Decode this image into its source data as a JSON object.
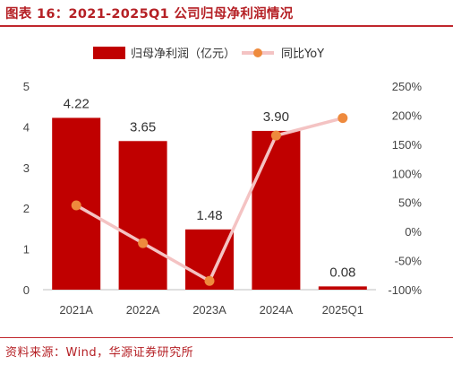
{
  "title": "图表 16：2021-2025Q1 公司归母净利润情况",
  "source": "资料来源：Wind，华源证券研究所",
  "colors": {
    "accent": "#c0272d",
    "bar": "#c00000",
    "line": "#f4c3c3",
    "marker": "#ee8a3d"
  },
  "chart_data": {
    "type": "bar",
    "categories": [
      "2021A",
      "2022A",
      "2023A",
      "2024A",
      "2025Q1"
    ],
    "series": [
      {
        "name": "归母净利润（亿元）",
        "type": "bar",
        "axis": "left",
        "values": [
          4.22,
          3.65,
          1.48,
          3.9,
          0.08
        ],
        "labels": [
          "4.22",
          "3.65",
          "1.48",
          "3.90",
          "0.08"
        ]
      },
      {
        "name": "同比YoY",
        "type": "line",
        "axis": "right",
        "values": [
          45,
          -20,
          -85,
          165,
          195
        ]
      }
    ],
    "y_left": {
      "lim": [
        0,
        5
      ],
      "ticks": [
        "0",
        "1",
        "2",
        "3",
        "4",
        "5"
      ]
    },
    "y_right": {
      "lim": [
        -100,
        250
      ],
      "ticks": [
        "-100%",
        "-50%",
        "0%",
        "50%",
        "100%",
        "150%",
        "200%",
        "250%"
      ]
    },
    "grid": false,
    "legend": "top"
  }
}
